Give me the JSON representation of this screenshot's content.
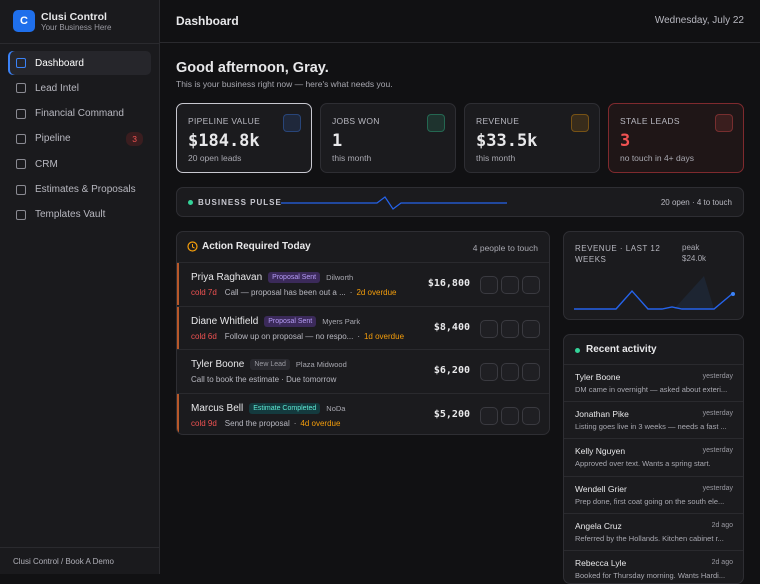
{
  "sidebar": {
    "brand": {
      "initial": "C",
      "name": "Clusi Control",
      "tagline": "Your Business Here"
    },
    "nav": [
      {
        "label": "Dashboard"
      },
      {
        "label": "Lead Intel"
      },
      {
        "label": "Financial Command"
      },
      {
        "label": "Pipeline",
        "badge": "3"
      },
      {
        "label": "CRM"
      },
      {
        "label": "Estimates & Proposals"
      },
      {
        "label": "Templates Vault"
      }
    ],
    "footer": "Clusi Control / Book A Demo"
  },
  "header": {
    "title": "Dashboard",
    "date": "Wednesday, July 22"
  },
  "greeting": {
    "title": "Good afternoon, Gray.",
    "subtitle": "This is your business right now — here's what needs you."
  },
  "kpis": [
    {
      "label": "PIPELINE VALUE",
      "value": "$184.8k",
      "sub": "20 open leads"
    },
    {
      "label": "JOBS WON",
      "value": "1",
      "sub": "this month"
    },
    {
      "label": "REVENUE",
      "value": "$33.5k",
      "sub": "this month"
    },
    {
      "label": "STALE LEADS",
      "value": "3",
      "sub": "no touch in 4+ days"
    }
  ],
  "pulse": {
    "label": "BUSINESS PULSE",
    "summary": "20 open · 4 to touch"
  },
  "actions": {
    "title": "Action Required Today",
    "count": "4 people to touch",
    "items": [
      {
        "name": "Priya Raghavan",
        "tag": "Proposal Sent",
        "location": "Dilworth",
        "cold": "cold 7d",
        "note": "Call — proposal has been out a ...",
        "overdue": "2d overdue",
        "amount": "$16,800"
      },
      {
        "name": "Diane Whitfield",
        "tag": "Proposal Sent",
        "location": "Myers Park",
        "cold": "cold 6d",
        "note": "Follow up on proposal — no respo...",
        "overdue": "1d overdue",
        "amount": "$8,400"
      },
      {
        "name": "Tyler Boone",
        "tag": "New Lead",
        "location": "Plaza Midwood",
        "note": "Call to book the estimate · Due tomorrow",
        "amount": "$6,200"
      },
      {
        "name": "Marcus Bell",
        "tag": "Estimate Completed",
        "location": "NoDa",
        "cold": "cold 9d",
        "note": "Send the proposal",
        "overdue": "4d overdue",
        "amount": "$5,200"
      }
    ]
  },
  "revenue": {
    "title": "REVENUE · LAST 12 WEEKS",
    "peak_label": "peak",
    "peak_value": "$24.0k"
  },
  "activity": {
    "title": "Recent activity",
    "items": [
      {
        "name": "Tyler Boone",
        "time": "yesterday",
        "text": "DM came in overnight — asked about exteri..."
      },
      {
        "name": "Jonathan Pike",
        "time": "yesterday",
        "text": "Listing goes live in 3 weeks — needs a fast ..."
      },
      {
        "name": "Kelly Nguyen",
        "time": "yesterday",
        "text": "Approved over text. Wants a spring start."
      },
      {
        "name": "Wendell Grier",
        "time": "yesterday",
        "text": "Prep done, first coat going on the south ele..."
      },
      {
        "name": "Angela Cruz",
        "time": "2d ago",
        "text": "Referred by the Hollands. Kitchen cabinet r..."
      },
      {
        "name": "Rebecca Lyle",
        "time": "2d ago",
        "text": "Booked for Thursday morning. Wants Hardi..."
      }
    ]
  }
}
